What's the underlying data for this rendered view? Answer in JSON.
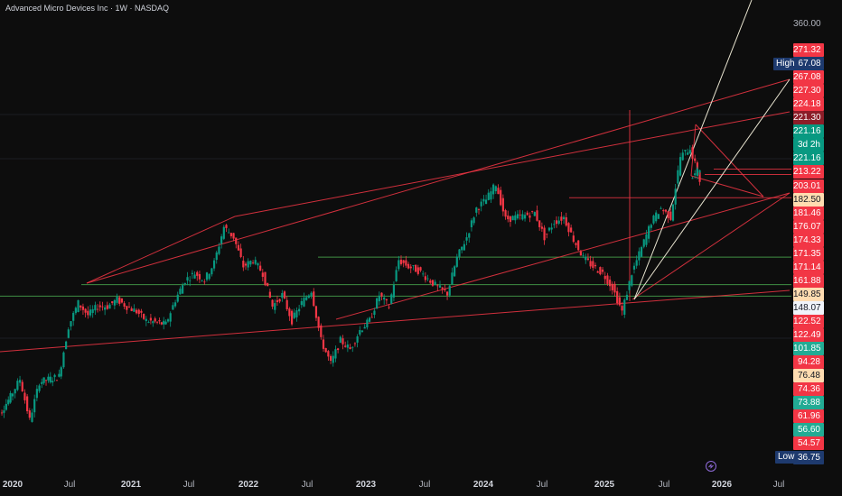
{
  "header": {
    "title": "Advanced Micro Devices Inc · 1W · NASDAQ"
  },
  "price_axis": {
    "top_tick": "360.00",
    "labels": [
      {
        "text": "271.32",
        "style": "bg-red"
      },
      {
        "text": "267.08",
        "style": "bg-blue",
        "tag": "High"
      },
      {
        "text": "267.08",
        "style": "bg-red"
      },
      {
        "text": "227.30",
        "style": "bg-red"
      },
      {
        "text": "224.18",
        "style": "bg-red"
      },
      {
        "text": "221.30",
        "style": "bg-darkred"
      },
      {
        "text": "221.16",
        "style": "bg-teal"
      },
      {
        "text": "3d 2h",
        "style": "bg-teal"
      },
      {
        "text": "221.16",
        "style": "bg-teal"
      },
      {
        "text": "213.22",
        "style": "bg-red"
      },
      {
        "text": "203.01",
        "style": "bg-red"
      },
      {
        "text": "182.50",
        "style": "bg-peach"
      },
      {
        "text": "181.46",
        "style": "bg-red"
      },
      {
        "text": "176.07",
        "style": "bg-red"
      },
      {
        "text": "174.33",
        "style": "bg-red"
      },
      {
        "text": "171.35",
        "style": "bg-red"
      },
      {
        "text": "171.14",
        "style": "bg-red"
      },
      {
        "text": "161.88",
        "style": "bg-red"
      },
      {
        "text": "149.85",
        "style": "bg-peach"
      },
      {
        "text": "148.07",
        "style": "bg-white"
      },
      {
        "text": "122.52",
        "style": "bg-red"
      },
      {
        "text": "122.49",
        "style": "bg-red"
      },
      {
        "text": "101.85",
        "style": "bg-green"
      },
      {
        "text": "94.28",
        "style": "bg-red"
      },
      {
        "text": "76.48",
        "style": "bg-peach"
      },
      {
        "text": "74.36",
        "style": "bg-red"
      },
      {
        "text": "73.88",
        "style": "bg-green"
      },
      {
        "text": "61.96",
        "style": "bg-red"
      },
      {
        "text": "56.60",
        "style": "bg-green"
      },
      {
        "text": "54.57",
        "style": "bg-red"
      },
      {
        "text": "36.75",
        "style": "bg-blue",
        "tag": "Low"
      }
    ]
  },
  "time_axis": [
    {
      "text": "2020",
      "bold": true
    },
    {
      "text": "Jul",
      "bold": false
    },
    {
      "text": "2021",
      "bold": true
    },
    {
      "text": "Jul",
      "bold": false
    },
    {
      "text": "2022",
      "bold": true
    },
    {
      "text": "Jul",
      "bold": false
    },
    {
      "text": "2023",
      "bold": true
    },
    {
      "text": "Jul",
      "bold": false
    },
    {
      "text": "2024",
      "bold": true
    },
    {
      "text": "Jul",
      "bold": false
    },
    {
      "text": "2025",
      "bold": true
    },
    {
      "text": "Jul",
      "bold": false
    },
    {
      "text": "2026",
      "bold": true
    },
    {
      "text": "Jul",
      "bold": false
    }
  ],
  "colors": {
    "background": "#0d0d0d",
    "up_candle": "#089981",
    "down_candle": "#f23645",
    "trendline": "#f23645",
    "support_line": "#4caf50",
    "fan_line": "#e8e4d0",
    "wick": "#cfcfcf"
  },
  "chart_data": {
    "type": "candlestick",
    "symbol": "Advanced Micro Devices Inc",
    "interval": "1W",
    "exchange": "NASDAQ",
    "x_range": [
      "2020-01",
      "2026-09"
    ],
    "y_scale": "log",
    "high": 267.08,
    "low": 36.75,
    "last_price": 221.16,
    "countdown": "3d 2h",
    "close_path": [
      {
        "date": "2019-11",
        "price": 39
      },
      {
        "date": "2020-01",
        "price": 48
      },
      {
        "date": "2020-02",
        "price": 54
      },
      {
        "date": "2020-03",
        "price": 41
      },
      {
        "date": "2020-04",
        "price": 53
      },
      {
        "date": "2020-06",
        "price": 55
      },
      {
        "date": "2020-07",
        "price": 77
      },
      {
        "date": "2020-08",
        "price": 90
      },
      {
        "date": "2020-09",
        "price": 83
      },
      {
        "date": "2020-10",
        "price": 88
      },
      {
        "date": "2020-11",
        "price": 88
      },
      {
        "date": "2020-12",
        "price": 92
      },
      {
        "date": "2021-01",
        "price": 88
      },
      {
        "date": "2021-02",
        "price": 85
      },
      {
        "date": "2021-03",
        "price": 80
      },
      {
        "date": "2021-05",
        "price": 78
      },
      {
        "date": "2021-06",
        "price": 92
      },
      {
        "date": "2021-07",
        "price": 105
      },
      {
        "date": "2021-08",
        "price": 110
      },
      {
        "date": "2021-09",
        "price": 105
      },
      {
        "date": "2021-10",
        "price": 118
      },
      {
        "date": "2021-11",
        "price": 150
      },
      {
        "date": "2021-12",
        "price": 140
      },
      {
        "date": "2022-01",
        "price": 115
      },
      {
        "date": "2022-02",
        "price": 120
      },
      {
        "date": "2022-03",
        "price": 110
      },
      {
        "date": "2022-04",
        "price": 88
      },
      {
        "date": "2022-05",
        "price": 95
      },
      {
        "date": "2022-06",
        "price": 80
      },
      {
        "date": "2022-07",
        "price": 90
      },
      {
        "date": "2022-08",
        "price": 98
      },
      {
        "date": "2022-09",
        "price": 70
      },
      {
        "date": "2022-10",
        "price": 60
      },
      {
        "date": "2022-11",
        "price": 70
      },
      {
        "date": "2022-12",
        "price": 66
      },
      {
        "date": "2023-01",
        "price": 75
      },
      {
        "date": "2023-02",
        "price": 80
      },
      {
        "date": "2023-03",
        "price": 95
      },
      {
        "date": "2023-04",
        "price": 88
      },
      {
        "date": "2023-05",
        "price": 120
      },
      {
        "date": "2023-06",
        "price": 115
      },
      {
        "date": "2023-07",
        "price": 112
      },
      {
        "date": "2023-08",
        "price": 106
      },
      {
        "date": "2023-09",
        "price": 100
      },
      {
        "date": "2023-10",
        "price": 96
      },
      {
        "date": "2023-11",
        "price": 122
      },
      {
        "date": "2023-12",
        "price": 140
      },
      {
        "date": "2024-01",
        "price": 170
      },
      {
        "date": "2024-02",
        "price": 180
      },
      {
        "date": "2024-03",
        "price": 200
      },
      {
        "date": "2024-04",
        "price": 158
      },
      {
        "date": "2024-05",
        "price": 160
      },
      {
        "date": "2024-06",
        "price": 162
      },
      {
        "date": "2024-07",
        "price": 165
      },
      {
        "date": "2024-08",
        "price": 140
      },
      {
        "date": "2024-09",
        "price": 155
      },
      {
        "date": "2024-10",
        "price": 160
      },
      {
        "date": "2024-11",
        "price": 138
      },
      {
        "date": "2024-12",
        "price": 122
      },
      {
        "date": "2025-01",
        "price": 115
      },
      {
        "date": "2025-02",
        "price": 110
      },
      {
        "date": "2025-03",
        "price": 100
      },
      {
        "date": "2025-04",
        "price": 85
      },
      {
        "date": "2025-05",
        "price": 110
      },
      {
        "date": "2025-06",
        "price": 130
      },
      {
        "date": "2025-07",
        "price": 155
      },
      {
        "date": "2025-08",
        "price": 170
      },
      {
        "date": "2025-09",
        "price": 160
      },
      {
        "date": "2025-10",
        "price": 240
      },
      {
        "date": "2025-11",
        "price": 255
      },
      {
        "date": "2025-11",
        "price": 205
      },
      {
        "date": "2025-12",
        "price": 221.16
      }
    ]
  }
}
